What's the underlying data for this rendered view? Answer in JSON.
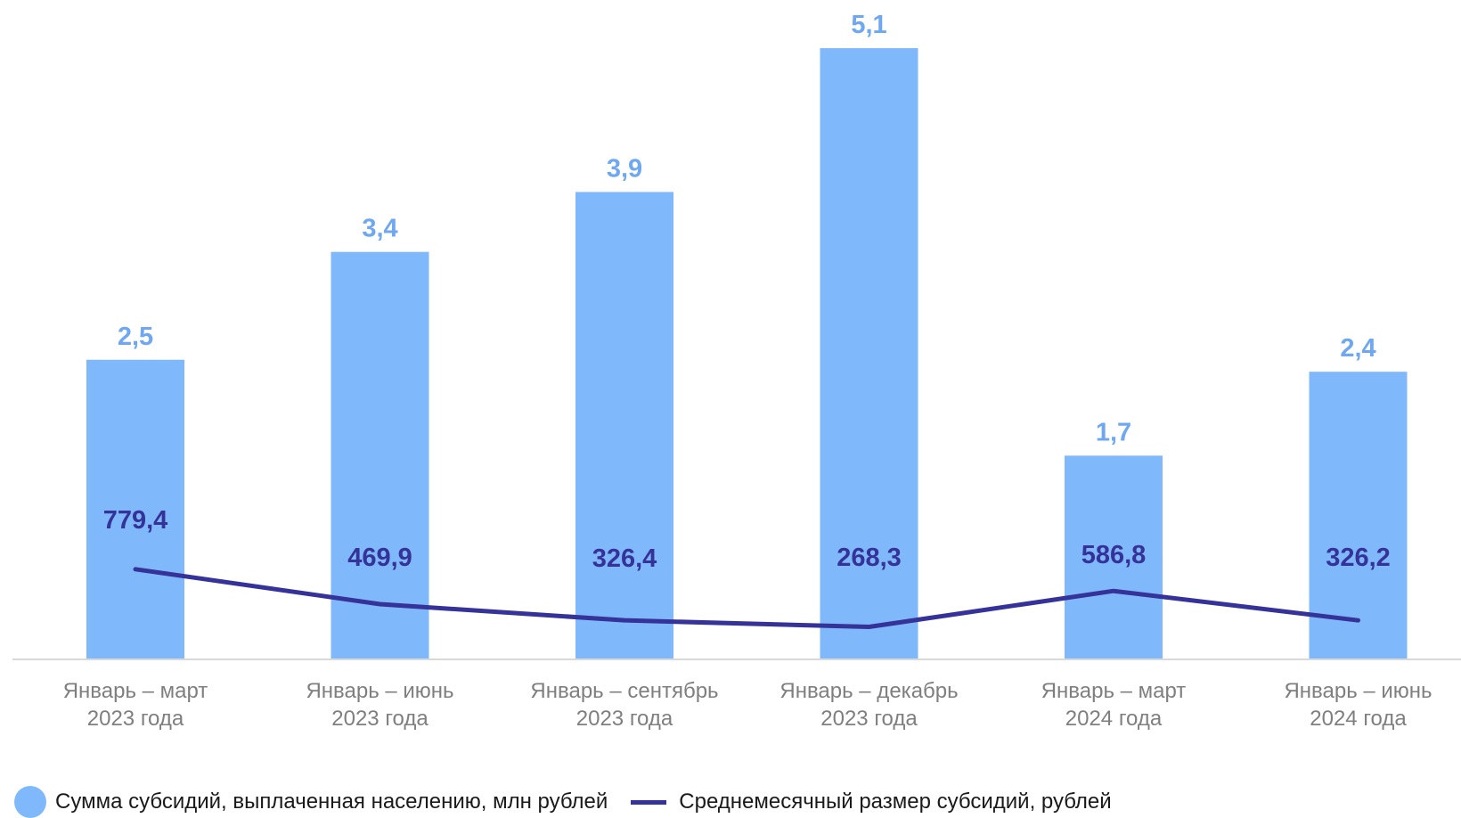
{
  "colors": {
    "bar": "#80b9fb",
    "bar_label": "#6fa8f0",
    "line": "#35329a",
    "axis": "#d9d9d9"
  },
  "legend": {
    "bar_label": "Сумма субсидий, выплаченная населению, млн рублей",
    "line_label": "Среднемесячный размер субсидий, рублей"
  },
  "chart_data": {
    "type": "bar",
    "categories": [
      [
        "Январь – март",
        "2023 года"
      ],
      [
        "Январь – июнь",
        "2023 года"
      ],
      [
        "Январь – сентябрь",
        "2023 года"
      ],
      [
        "Январь – декабрь",
        "2023 года"
      ],
      [
        "Январь – март",
        "2024 года"
      ],
      [
        "Январь – июнь",
        "2024 года"
      ]
    ],
    "series": [
      {
        "name": "Сумма субсидий, выплаченная населению, млн рублей",
        "type": "bar",
        "values": [
          2.5,
          3.4,
          3.9,
          5.1,
          1.7,
          2.4
        ],
        "labels": [
          "2,5",
          "3,4",
          "3,9",
          "5,1",
          "1,7",
          "2,4"
        ]
      },
      {
        "name": "Среднемесячный размер субсидий, рублей",
        "type": "line",
        "values": [
          779.4,
          469.9,
          326.4,
          268.3,
          586.8,
          326.2
        ],
        "labels": [
          "779,4",
          "469,9",
          "326,4",
          "268,3",
          "586,8",
          "326,2"
        ]
      }
    ],
    "legend_position": "bottom-left",
    "grid": false
  }
}
